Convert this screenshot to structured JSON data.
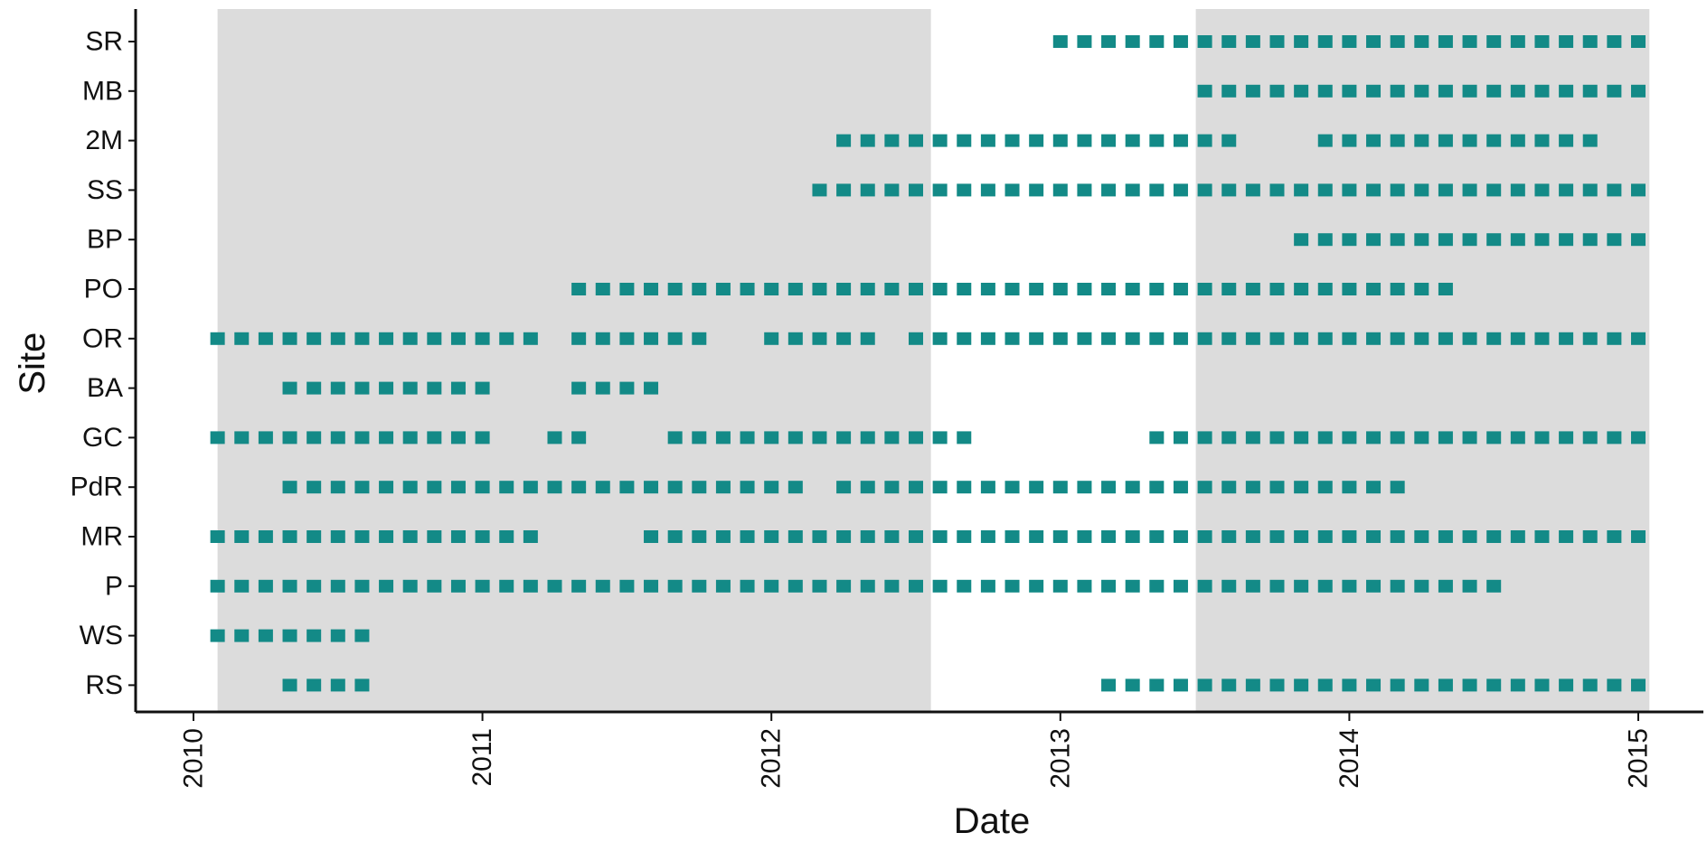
{
  "chart_data": {
    "type": "scatter",
    "title": "",
    "xlabel": "Date",
    "ylabel": "Site",
    "x_axis": {
      "min": "2010-01-01",
      "max": "2015-01-31",
      "ticks": [
        "2010",
        "2011",
        "2012",
        "2013",
        "2014",
        "2015"
      ]
    },
    "y_axis": {
      "categories_top_to_bottom": [
        "SR",
        "MB",
        "2M",
        "SS",
        "BP",
        "PO",
        "OR",
        "BA",
        "GC",
        "PdR",
        "MR",
        "P",
        "WS",
        "RS"
      ]
    },
    "grid": false,
    "legend": "none",
    "colors": {
      "point": "#138a87",
      "shaded_period": "#dcdcdc",
      "axis": "#111111"
    },
    "shaded_periods": [
      {
        "start": "2010-02-01",
        "end": "2012-07-20"
      },
      {
        "start": "2013-06-20",
        "end": "2015-01-15"
      }
    ],
    "series": [
      {
        "site": "SR",
        "monthly_runs": [
          [
            "2013-01",
            "2015-01"
          ]
        ]
      },
      {
        "site": "MB",
        "monthly_runs": [
          [
            "2013-07",
            "2015-01"
          ]
        ]
      },
      {
        "site": "2M",
        "monthly_runs": [
          [
            "2012-04",
            "2013-08"
          ],
          [
            "2013-12",
            "2014-11"
          ]
        ]
      },
      {
        "site": "SS",
        "monthly_runs": [
          [
            "2012-03",
            "2015-01"
          ]
        ]
      },
      {
        "site": "BP",
        "monthly_runs": [
          [
            "2013-11",
            "2015-01"
          ]
        ]
      },
      {
        "site": "PO",
        "monthly_runs": [
          [
            "2011-05",
            "2014-05"
          ]
        ]
      },
      {
        "site": "OR",
        "monthly_runs": [
          [
            "2010-02",
            "2011-03"
          ],
          [
            "2011-05",
            "2011-10"
          ],
          [
            "2012-01",
            "2012-05"
          ],
          [
            "2012-07",
            "2015-01"
          ]
        ]
      },
      {
        "site": "BA",
        "monthly_runs": [
          [
            "2010-05",
            "2011-01"
          ],
          [
            "2011-05",
            "2011-08"
          ]
        ]
      },
      {
        "site": "GC",
        "monthly_runs": [
          [
            "2010-02",
            "2011-01"
          ],
          [
            "2011-04",
            "2011-05"
          ],
          [
            "2011-09",
            "2012-09"
          ],
          [
            "2013-05",
            "2015-01"
          ]
        ]
      },
      {
        "site": "PdR",
        "monthly_runs": [
          [
            "2010-05",
            "2012-02"
          ],
          [
            "2012-04",
            "2014-03"
          ]
        ]
      },
      {
        "site": "MR",
        "monthly_runs": [
          [
            "2010-02",
            "2011-03"
          ],
          [
            "2011-08",
            "2015-01"
          ]
        ]
      },
      {
        "site": "P",
        "monthly_runs": [
          [
            "2010-02",
            "2014-07"
          ]
        ]
      },
      {
        "site": "WS",
        "monthly_runs": [
          [
            "2010-02",
            "2010-08"
          ]
        ]
      },
      {
        "site": "RS",
        "monthly_runs": [
          [
            "2010-05",
            "2010-08"
          ],
          [
            "2013-03",
            "2015-01"
          ]
        ]
      }
    ]
  }
}
